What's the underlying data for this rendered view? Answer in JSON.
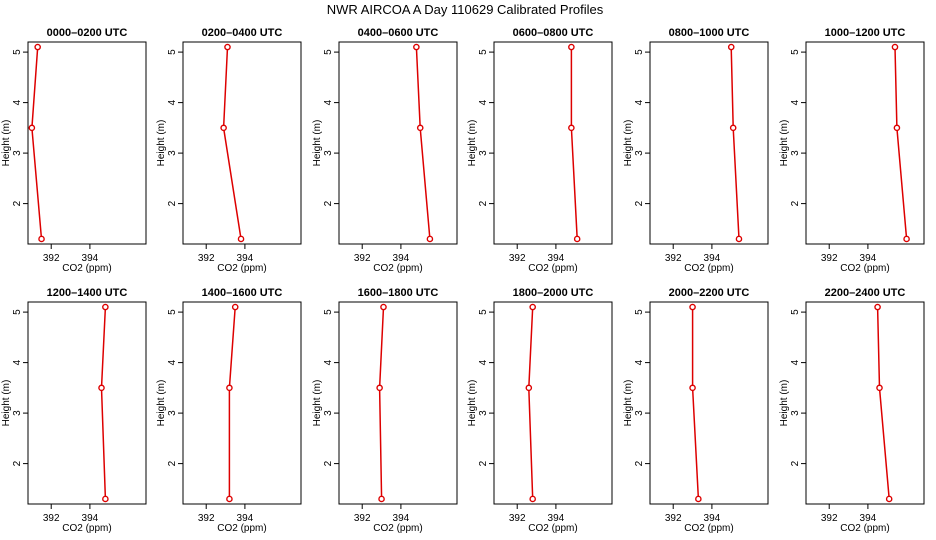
{
  "title": "NWR AIRCOA A  Day 110629  Calibrated Profiles",
  "colors": {
    "line": "#dd0000",
    "axes": "#000000"
  },
  "chart_data": [
    {
      "type": "line",
      "title": "0000–0200 UTC",
      "xlabel": "CO2 (ppm)",
      "ylabel": "Height (m)",
      "xlim": [
        390.8,
        396.9
      ],
      "ylim": [
        1.2,
        5.2
      ],
      "xticks": [
        392,
        394
      ],
      "yticks": [
        2,
        3,
        4,
        5
      ],
      "x": [
        391.3,
        391.0,
        391.5
      ],
      "y": [
        5.1,
        3.5,
        1.3
      ]
    },
    {
      "type": "line",
      "title": "0200–0400 UTC",
      "xlabel": "CO2 (ppm)",
      "ylabel": "Height (m)",
      "xlim": [
        390.8,
        396.9
      ],
      "ylim": [
        1.2,
        5.2
      ],
      "xticks": [
        392,
        394
      ],
      "yticks": [
        2,
        3,
        4,
        5
      ],
      "x": [
        393.1,
        392.9,
        393.8
      ],
      "y": [
        5.1,
        3.5,
        1.3
      ]
    },
    {
      "type": "line",
      "title": "0400–0600 UTC",
      "xlabel": "CO2 (ppm)",
      "ylabel": "Height (m)",
      "xlim": [
        390.8,
        396.9
      ],
      "ylim": [
        1.2,
        5.2
      ],
      "xticks": [
        392,
        394
      ],
      "yticks": [
        2,
        3,
        4,
        5
      ],
      "x": [
        394.8,
        395.0,
        395.5
      ],
      "y": [
        5.1,
        3.5,
        1.3
      ]
    },
    {
      "type": "line",
      "title": "0600–0800 UTC",
      "xlabel": "CO2 (ppm)",
      "ylabel": "Height (m)",
      "xlim": [
        390.8,
        396.9
      ],
      "ylim": [
        1.2,
        5.2
      ],
      "xticks": [
        392,
        394
      ],
      "yticks": [
        2,
        3,
        4,
        5
      ],
      "x": [
        394.8,
        394.8,
        395.1
      ],
      "y": [
        5.1,
        3.5,
        1.3
      ]
    },
    {
      "type": "line",
      "title": "0800–1000 UTC",
      "xlabel": "CO2 (ppm)",
      "ylabel": "Height (m)",
      "xlim": [
        390.8,
        396.9
      ],
      "ylim": [
        1.2,
        5.2
      ],
      "xticks": [
        392,
        394
      ],
      "yticks": [
        2,
        3,
        4,
        5
      ],
      "x": [
        395.0,
        395.1,
        395.4
      ],
      "y": [
        5.1,
        3.5,
        1.3
      ]
    },
    {
      "type": "line",
      "title": "1000–1200 UTC",
      "xlabel": "CO2 (ppm)",
      "ylabel": "Height (m)",
      "xlim": [
        390.8,
        396.9
      ],
      "ylim": [
        1.2,
        5.2
      ],
      "xticks": [
        392,
        394
      ],
      "yticks": [
        2,
        3,
        4,
        5
      ],
      "x": [
        395.4,
        395.5,
        396.0
      ],
      "y": [
        5.1,
        3.5,
        1.3
      ]
    },
    {
      "type": "line",
      "title": "1200–1400 UTC",
      "xlabel": "CO2 (ppm)",
      "ylabel": "Height (m)",
      "xlim": [
        390.8,
        396.9
      ],
      "ylim": [
        1.2,
        5.2
      ],
      "xticks": [
        392,
        394
      ],
      "yticks": [
        2,
        3,
        4,
        5
      ],
      "x": [
        394.8,
        394.6,
        394.8
      ],
      "y": [
        5.1,
        3.5,
        1.3
      ]
    },
    {
      "type": "line",
      "title": "1400–1600 UTC",
      "xlabel": "CO2 (ppm)",
      "ylabel": "Height (m)",
      "xlim": [
        390.8,
        396.9
      ],
      "ylim": [
        1.2,
        5.2
      ],
      "xticks": [
        392,
        394
      ],
      "yticks": [
        2,
        3,
        4,
        5
      ],
      "x": [
        393.5,
        393.2,
        393.2
      ],
      "y": [
        5.1,
        3.5,
        1.3
      ]
    },
    {
      "type": "line",
      "title": "1600–1800 UTC",
      "xlabel": "CO2 (ppm)",
      "ylabel": "Height (m)",
      "xlim": [
        390.8,
        396.9
      ],
      "ylim": [
        1.2,
        5.2
      ],
      "xticks": [
        392,
        394
      ],
      "yticks": [
        2,
        3,
        4,
        5
      ],
      "x": [
        393.1,
        392.9,
        393.0
      ],
      "y": [
        5.1,
        3.5,
        1.3
      ]
    },
    {
      "type": "line",
      "title": "1800–2000 UTC",
      "xlabel": "CO2 (ppm)",
      "ylabel": "Height (m)",
      "xlim": [
        390.8,
        396.9
      ],
      "ylim": [
        1.2,
        5.2
      ],
      "xticks": [
        392,
        394
      ],
      "yticks": [
        2,
        3,
        4,
        5
      ],
      "x": [
        392.8,
        392.6,
        392.8
      ],
      "y": [
        5.1,
        3.5,
        1.3
      ]
    },
    {
      "type": "line",
      "title": "2000–2200 UTC",
      "xlabel": "CO2 (ppm)",
      "ylabel": "Height (m)",
      "xlim": [
        390.8,
        396.9
      ],
      "ylim": [
        1.2,
        5.2
      ],
      "xticks": [
        392,
        394
      ],
      "yticks": [
        2,
        3,
        4,
        5
      ],
      "x": [
        393.0,
        393.0,
        393.3
      ],
      "y": [
        5.1,
        3.5,
        1.3
      ]
    },
    {
      "type": "line",
      "title": "2200–2400 UTC",
      "xlabel": "CO2 (ppm)",
      "ylabel": "Height (m)",
      "xlim": [
        390.8,
        396.9
      ],
      "ylim": [
        1.2,
        5.2
      ],
      "xticks": [
        392,
        394
      ],
      "yticks": [
        2,
        3,
        4,
        5
      ],
      "x": [
        394.5,
        394.6,
        395.1
      ],
      "y": [
        5.1,
        3.5,
        1.3
      ]
    }
  ]
}
